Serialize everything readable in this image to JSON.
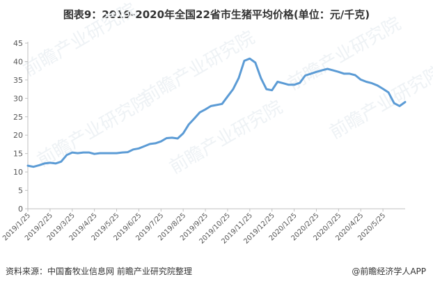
{
  "chart_data": {
    "type": "line",
    "title": "图表9：2019-2020年全国22省市生猪平均价格(单位：元/千克)",
    "xlabel": "",
    "ylabel": "",
    "ylim": [
      0,
      45
    ],
    "y_ticks": [
      0,
      5,
      10,
      15,
      20,
      25,
      30,
      35,
      40,
      45
    ],
    "grid": false,
    "line_color": "#5b9bd5",
    "x_tick_labels": [
      "2019/1/25",
      "2019/2/25",
      "2019/3/25",
      "2019/4/25",
      "2019/5/25",
      "2019/6/25",
      "2019/7/25",
      "2019/8/25",
      "2019/9/25",
      "2019/10/25",
      "2019/11/25",
      "2019/12/25",
      "2020/1/25",
      "2020/2/25",
      "2020/3/25",
      "2020/4/25",
      "2020/5/25"
    ],
    "x_tick_index": [
      0,
      4,
      8,
      12,
      16,
      20,
      24,
      28,
      32,
      36,
      40,
      44,
      48,
      52,
      56,
      60,
      64
    ],
    "values": [
      11.7,
      11.4,
      11.8,
      12.3,
      12.5,
      12.3,
      12.8,
      14.6,
      15.3,
      15.1,
      15.3,
      15.3,
      14.9,
      15.1,
      15.1,
      15.1,
      15.1,
      15.3,
      15.4,
      16.1,
      16.4,
      17.0,
      17.6,
      17.8,
      18.3,
      19.2,
      19.3,
      19.1,
      20.5,
      22.9,
      24.5,
      26.2,
      27.0,
      27.9,
      28.2,
      28.5,
      30.5,
      32.5,
      35.5,
      40.2,
      40.8,
      39.7,
      35.5,
      32.5,
      32.2,
      34.5,
      34.1,
      33.7,
      33.7,
      34.2,
      36.2,
      36.7,
      37.2,
      37.6,
      38.0,
      37.6,
      37.2,
      36.7,
      36.7,
      36.3,
      35.1,
      34.5,
      34.1,
      33.5,
      32.6,
      31.6,
      28.7,
      27.9,
      29.0
    ]
  },
  "watermark": "前瞻产业研究院",
  "footer": {
    "source": "资料来源：中国畜牧业信息网 前瞻产业研究院整理",
    "brand": "@前瞻经济学人APP"
  }
}
